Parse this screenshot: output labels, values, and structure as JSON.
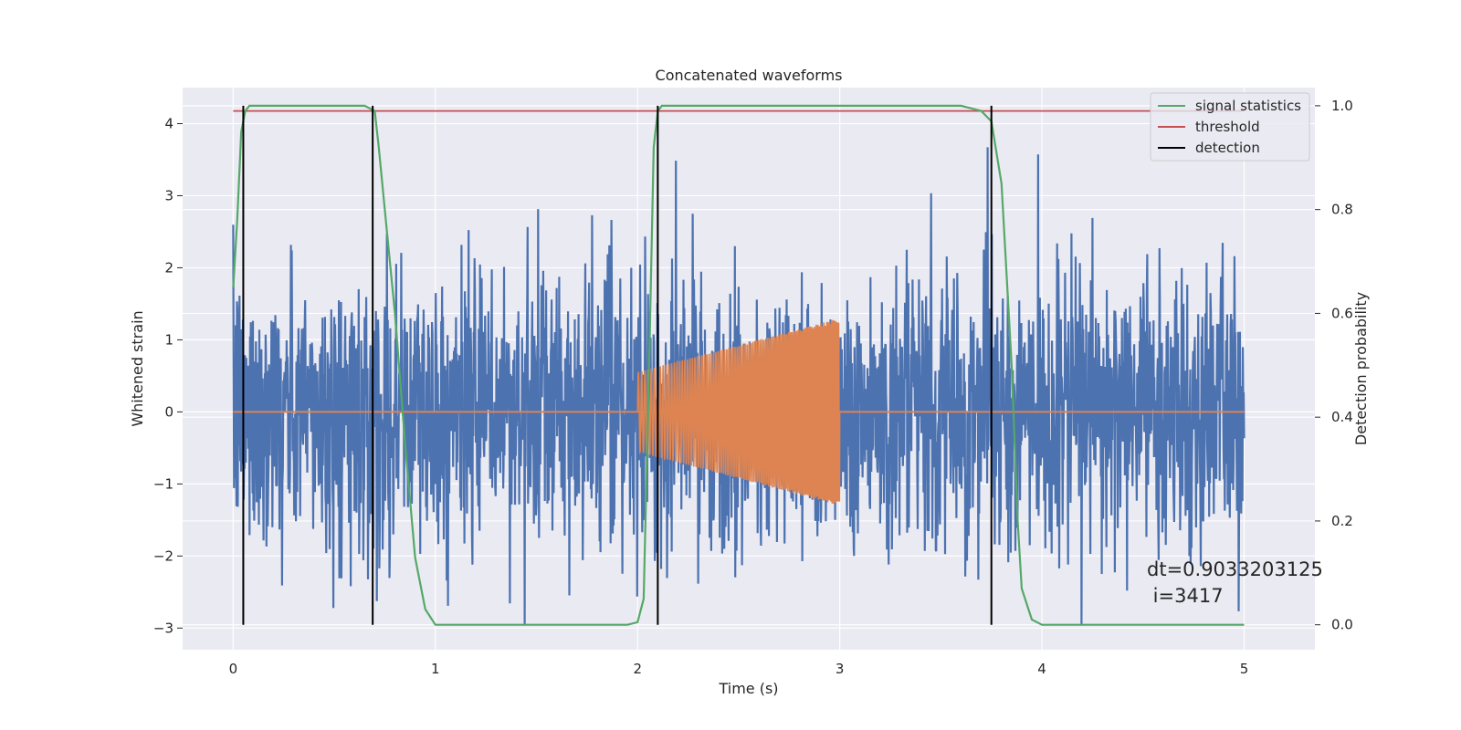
{
  "chart_data": {
    "type": "line",
    "title": "Concatenated waveforms",
    "xlabel": "Time (s)",
    "ylabel": "Whitened strain",
    "y2label": "Detection probability",
    "xlim": [
      -0.25,
      5.35
    ],
    "ylim": [
      -3.3,
      4.5
    ],
    "y2lim": [
      -0.048,
      1.035
    ],
    "x_ticks": [
      0,
      1,
      2,
      3,
      4,
      5
    ],
    "x_tick_labels": [
      "0",
      "1",
      "2",
      "3",
      "4",
      "5"
    ],
    "y_ticks": [
      -3,
      -2,
      -1,
      0,
      1,
      2,
      3,
      4
    ],
    "y_tick_labels": [
      "−3",
      "−2",
      "−1",
      "0",
      "1",
      "2",
      "3",
      "4"
    ],
    "y2_ticks": [
      0.0,
      0.2,
      0.4,
      0.6,
      0.8,
      1.0
    ],
    "y2_tick_labels": [
      "0.0",
      "0.2",
      "0.4",
      "0.6",
      "0.8",
      "1.0"
    ],
    "grid": true,
    "legend_position": "top-right",
    "legend": [
      {
        "label": "signal statistics",
        "color": "#55a868"
      },
      {
        "label": "threshold",
        "color": "#c44e52"
      },
      {
        "label": "detection",
        "color": "#000000"
      }
    ],
    "series": [
      {
        "kind": "noise",
        "axis": "left",
        "color": "#4c72b0",
        "x_range": [
          0,
          5
        ],
        "typical_amplitude": 1.3,
        "max_value": 4.2,
        "min_value": -2.95
      },
      {
        "kind": "chirp",
        "axis": "left",
        "color": "#dd8452",
        "x_range": [
          2,
          3
        ],
        "flat_zero_range": [
          0,
          5
        ],
        "amplitude_start": 0.55,
        "amplitude_end": 1.3
      },
      {
        "name": "signal statistics",
        "axis": "right",
        "color": "#55a868",
        "x": [
          0.0,
          0.02,
          0.04,
          0.06,
          0.08,
          0.1,
          0.2,
          0.6,
          0.65,
          0.7,
          0.72,
          0.75,
          0.8,
          0.85,
          0.9,
          0.95,
          1.0,
          1.5,
          1.95,
          2.0,
          2.03,
          2.06,
          2.08,
          2.1,
          2.12,
          2.2,
          3.6,
          3.7,
          3.75,
          3.8,
          3.85,
          3.88,
          3.9,
          3.95,
          4.0,
          5.0
        ],
        "y": [
          0.65,
          0.78,
          0.95,
          0.99,
          1.0,
          1.0,
          1.0,
          1.0,
          1.0,
          0.99,
          0.92,
          0.8,
          0.6,
          0.35,
          0.13,
          0.03,
          0.0,
          0.0,
          0.0,
          0.005,
          0.05,
          0.55,
          0.92,
          0.99,
          1.0,
          1.0,
          1.0,
          0.99,
          0.97,
          0.85,
          0.5,
          0.2,
          0.07,
          0.01,
          0.0,
          0.0
        ]
      },
      {
        "name": "threshold",
        "axis": "right",
        "color": "#c44e52",
        "x": [
          0,
          5
        ],
        "y": [
          0.99,
          0.99
        ]
      }
    ],
    "detections": [
      0.05,
      0.69,
      2.1,
      3.75
    ],
    "detection_range": [
      0.0,
      1.0
    ],
    "annotation": {
      "line1": "dt=0.9033203125",
      "line2": " i=3417",
      "x": 4.5,
      "y": -2.0
    }
  }
}
